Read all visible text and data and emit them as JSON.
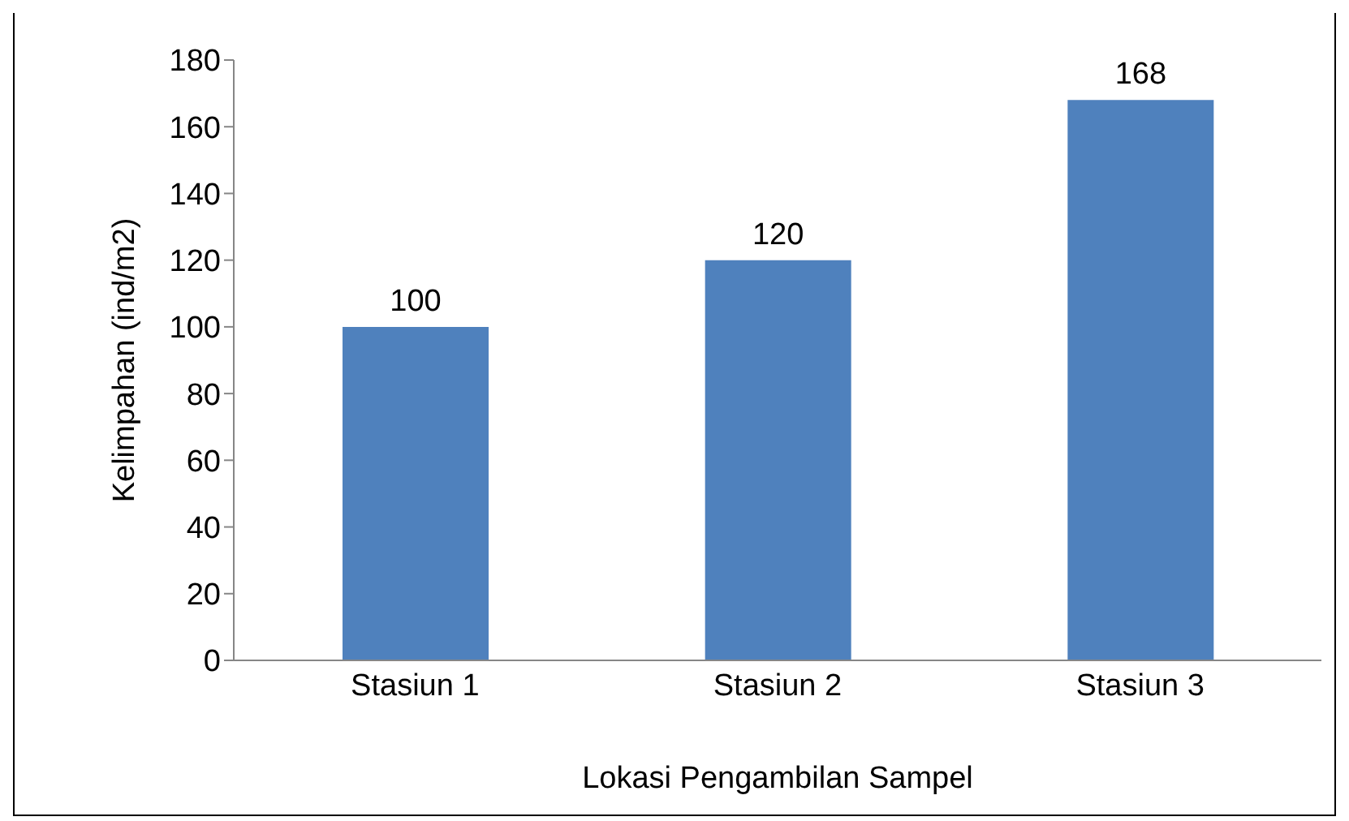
{
  "chart_data": {
    "type": "bar",
    "xlabel": "Lokasi Pengambilan Sampel",
    "ylabel": "Kelimpahan (ind/m2)",
    "categories": [
      "Stasiun 1",
      "Stasiun 2",
      "Stasiun 3"
    ],
    "values": [
      100,
      120,
      168
    ],
    "color": "#4f81bd",
    "ylim": [
      0,
      180
    ],
    "yticks": [
      0,
      20,
      40,
      60,
      80,
      100,
      120,
      140,
      160,
      180
    ],
    "grid": false,
    "data_labels": true
  }
}
